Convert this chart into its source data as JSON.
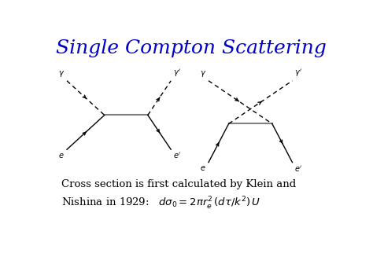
{
  "title": "Single Compton Scattering",
  "title_color": "#0000CC",
  "title_fontsize": 18,
  "bg_color": "#ffffff",
  "caption_fontsize": 9.5,
  "lbl_fontsize": 7
}
